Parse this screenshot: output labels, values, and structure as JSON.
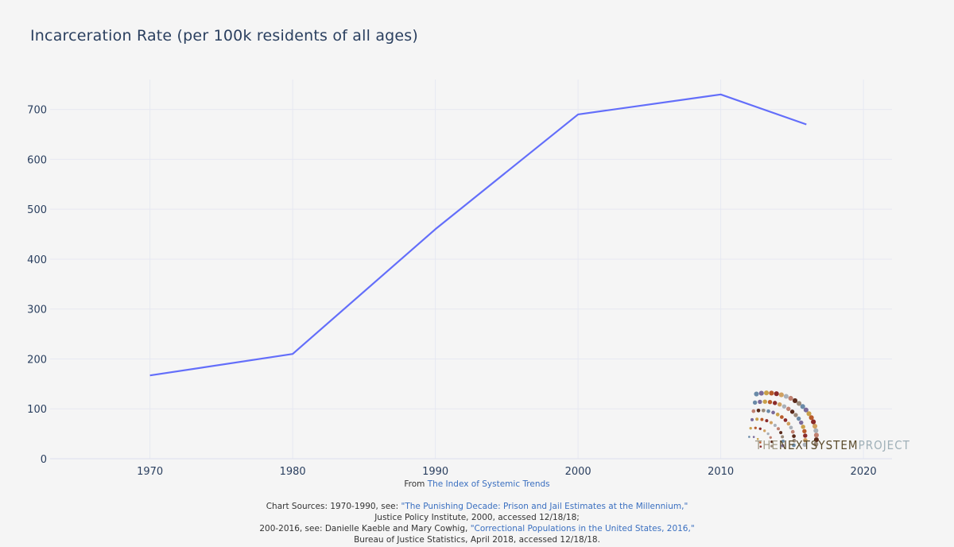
{
  "chart_data": {
    "type": "line",
    "title": "Incarceration Rate (per 100k residents of all ages)",
    "xlabel": "",
    "ylabel": "",
    "x": [
      1970,
      1980,
      1990,
      2000,
      2010,
      2016
    ],
    "series": [
      {
        "values": [
          167,
          210,
          460,
          690,
          730,
          670
        ],
        "color": "#636efa"
      }
    ],
    "xlim": [
      1963,
      2022
    ],
    "ylim": [
      0,
      760
    ],
    "x_ticks": [
      1970,
      1980,
      1990,
      2000,
      2010,
      2020
    ],
    "y_ticks": [
      0,
      100,
      200,
      300,
      400,
      500,
      600,
      700
    ],
    "grid": true
  },
  "logo": {
    "text_the": "THE",
    "text_next": "NEXT",
    "text_system": "SYSTEM",
    "text_project": "PROJECT"
  },
  "footer": {
    "from_prefix": "From",
    "from_link": "The Index of Systemic Trends",
    "line1_prefix": "Chart Sources:  1970-1990, see:",
    "line1_link": "\"The Punishing Decade: Prison and Jail Estimates at the Millennium,\"",
    "line2": "Justice Policy Institute, 2000, accessed 12/18/18;",
    "line3_prefix": "200-2016, see: Danielle Kaeble and Mary Cowhig,",
    "line3_link": "\"Correctional Populations in the United States, 2016,\"",
    "line4": "Bureau of Justice Statistics, April 2018, accessed 12/18/18."
  },
  "colors": {
    "background": "#f5f5f5",
    "grid": "#e6e8f2",
    "line": "#636efa",
    "axis_text": "#2a3f5f",
    "link": "#3a6fc0"
  }
}
